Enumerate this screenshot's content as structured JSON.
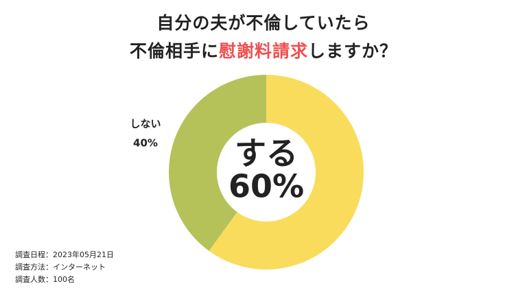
{
  "chart_data": {
    "type": "donut",
    "title": {
      "line1": "自分の夫が不倫していたら",
      "line2": [
        "不倫相手に",
        "慰謝料請求",
        "しますか？"
      ]
    },
    "categories": [
      "する",
      "しない"
    ],
    "values": [
      60,
      40
    ],
    "value_labels": [
      "60%",
      "40%"
    ],
    "colors": [
      "#f9dc5c",
      "#b5c25a"
    ],
    "notes": [
      "調査日程：2023年05月21日",
      "調査方法：インターネット",
      "調査人数：100名"
    ]
  }
}
